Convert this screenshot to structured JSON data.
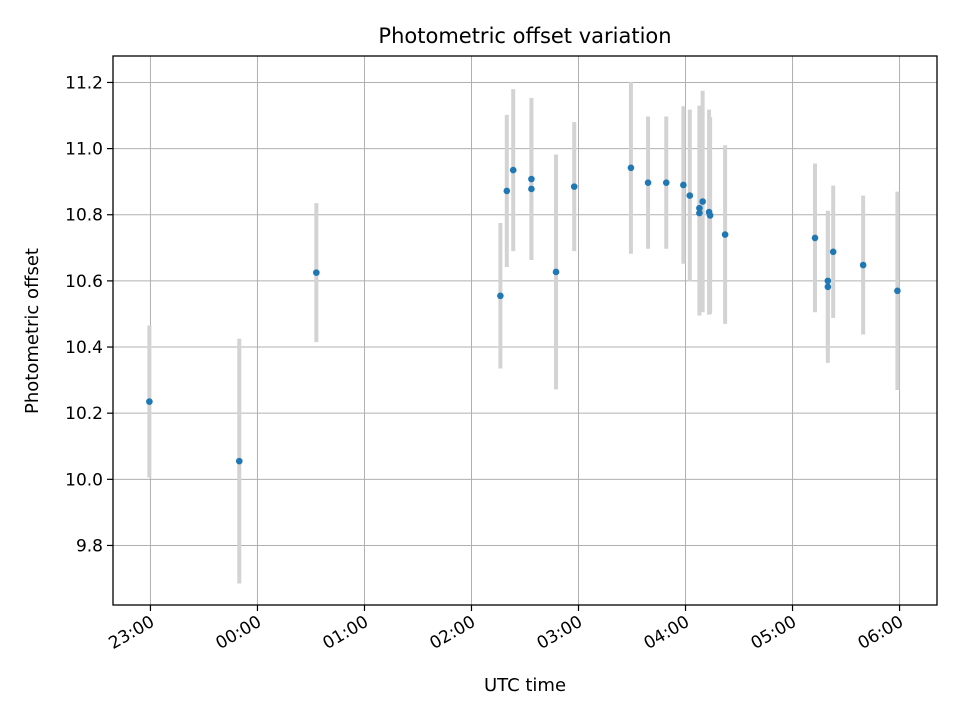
{
  "chart_data": {
    "type": "scatter",
    "title": "Photometric offset variation",
    "xlabel": "UTC time",
    "ylabel": "Photometric offset",
    "x_ticks": [
      "23:00",
      "00:00",
      "01:00",
      "02:00",
      "03:00",
      "04:00",
      "05:00",
      "06:00"
    ],
    "y_ticks": [
      "9.8",
      "10.0",
      "10.2",
      "10.4",
      "10.6",
      "10.8",
      "11.0",
      "11.2"
    ],
    "x_unit": "hours after 23:00 UTC",
    "xlim": [
      -0.35,
      7.35
    ],
    "ylim": [
      9.62,
      11.28
    ],
    "grid": true,
    "marker_color": "#1f77b4",
    "errorbar_color": "#d3d3d3",
    "points": [
      {
        "x": -0.01,
        "y": 10.235,
        "err": 0.23
      },
      {
        "x": 0.83,
        "y": 10.055,
        "err": 0.37
      },
      {
        "x": 1.55,
        "y": 10.625,
        "err": 0.21
      },
      {
        "x": 3.27,
        "y": 10.555,
        "err": 0.22
      },
      {
        "x": 3.33,
        "y": 10.872,
        "err": 0.23
      },
      {
        "x": 3.39,
        "y": 10.935,
        "err": 0.245
      },
      {
        "x": 3.56,
        "y": 10.908,
        "err": 0.245
      },
      {
        "x": 3.56,
        "y": 10.878,
        "err": 0.215
      },
      {
        "x": 3.79,
        "y": 10.627,
        "err": 0.355
      },
      {
        "x": 3.96,
        "y": 10.885,
        "err": 0.195
      },
      {
        "x": 4.49,
        "y": 10.942,
        "err": 0.26
      },
      {
        "x": 4.65,
        "y": 10.897,
        "err": 0.2
      },
      {
        "x": 4.82,
        "y": 10.897,
        "err": 0.2
      },
      {
        "x": 4.98,
        "y": 10.89,
        "err": 0.238
      },
      {
        "x": 5.04,
        "y": 10.858,
        "err": 0.26
      },
      {
        "x": 5.13,
        "y": 10.82,
        "err": 0.31
      },
      {
        "x": 5.13,
        "y": 10.805,
        "err": 0.31
      },
      {
        "x": 5.16,
        "y": 10.84,
        "err": 0.335
      },
      {
        "x": 5.22,
        "y": 10.808,
        "err": 0.31
      },
      {
        "x": 5.23,
        "y": 10.798,
        "err": 0.297
      },
      {
        "x": 5.37,
        "y": 10.74,
        "err": 0.27
      },
      {
        "x": 6.21,
        "y": 10.73,
        "err": 0.225
      },
      {
        "x": 6.33,
        "y": 10.6,
        "err": 0.21
      },
      {
        "x": 6.33,
        "y": 10.582,
        "err": 0.23
      },
      {
        "x": 6.38,
        "y": 10.688,
        "err": 0.2
      },
      {
        "x": 6.66,
        "y": 10.648,
        "err": 0.21
      },
      {
        "x": 6.98,
        "y": 10.57,
        "err": 0.3
      }
    ]
  }
}
